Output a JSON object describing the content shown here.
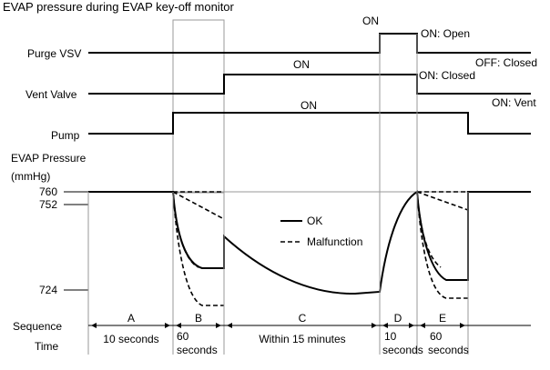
{
  "title": "EVAP pressure during EVAP key-off monitor",
  "rows": {
    "purge_vsv": "Purge VSV",
    "vent_valve": "Vent Valve",
    "pump": "Pump",
    "evap_pressure": "EVAP Pressure",
    "pressure_unit": "(mmHg)"
  },
  "on_labels": {
    "purge_on": "ON",
    "vent_on": "ON",
    "pump_on": "ON"
  },
  "state_labels": {
    "on_open": "ON: Open",
    "off_closed": "OFF: Closed",
    "on_closed": "ON: Closed",
    "on_vent": "ON: Vent"
  },
  "pressure_ticks": [
    "760",
    "752",
    "724"
  ],
  "legend": {
    "ok": "OK",
    "malfunction": "Malfunction"
  },
  "sequence": {
    "row_label": "Sequence",
    "time_label": "Time",
    "phases": [
      {
        "name": "A",
        "time": "10 seconds",
        "time_line2": ""
      },
      {
        "name": "B",
        "time": "60",
        "time_line2": "seconds"
      },
      {
        "name": "C",
        "time": "Within 15 minutes",
        "time_line2": ""
      },
      {
        "name": "D",
        "time": "10",
        "time_line2": "seconds"
      },
      {
        "name": "E",
        "time": "60",
        "time_line2": "seconds"
      }
    ]
  }
}
